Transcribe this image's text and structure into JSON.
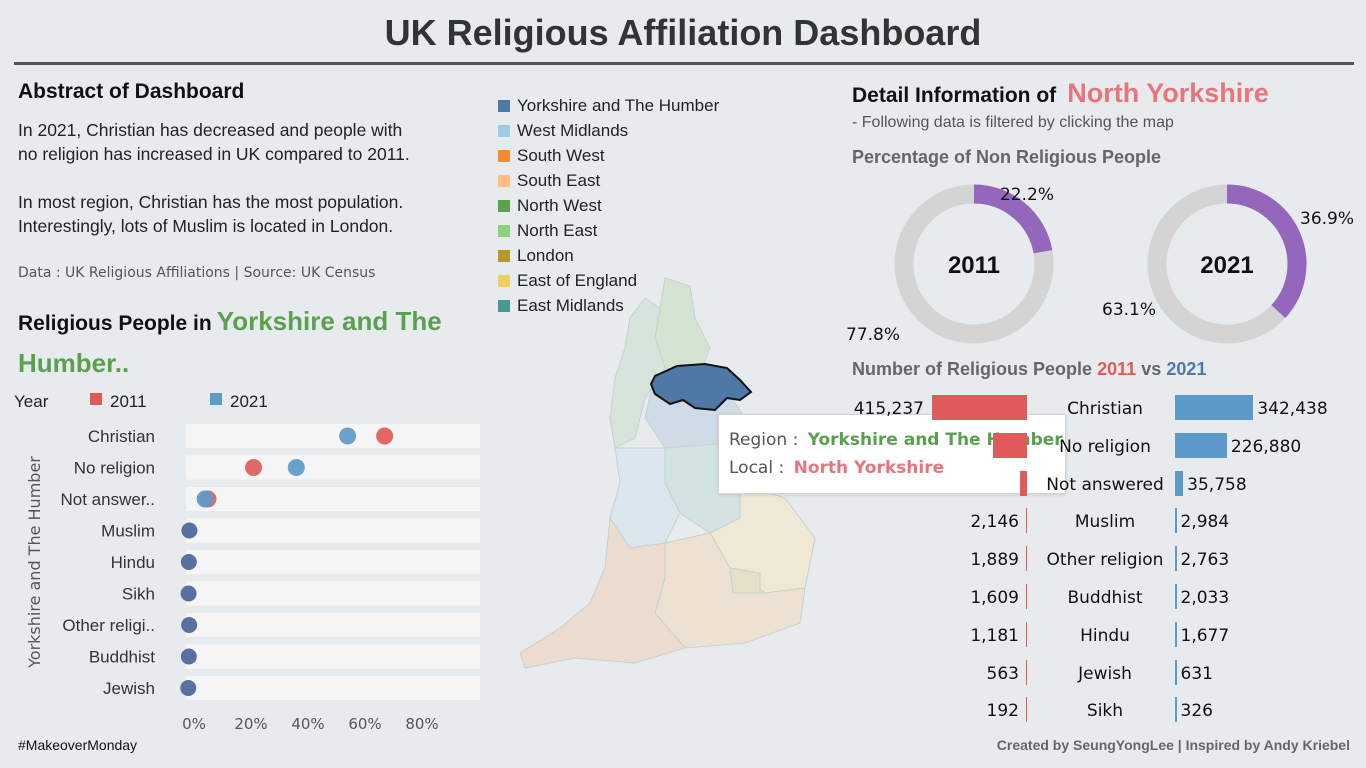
{
  "page": {
    "title": "UK Religious Affiliation Dashboard",
    "footer_left": "#MakeoverMonday",
    "footer_right": "Created by SeungYongLee | Inspired by Andy Kriebel"
  },
  "abstract": {
    "heading": "Abstract of Dashboard",
    "para1_line1": "In 2021, Christian has decreased  and people with",
    "para1_line2": "no religion has increased in UK compared to 2011.",
    "para2_line1": "In most region, Christian has the most population.",
    "para2_line2": "Interestingly, lots of Muslim is located in London.",
    "source": "Data : UK Religious Affiliations  | Source: UK Census"
  },
  "religious_people": {
    "heading_prefix": "Religious People in",
    "region_line1": "Yorkshire and The",
    "region_line2": "Humber.."
  },
  "region_legend": [
    {
      "label": "Yorkshire and The Humber",
      "color": "#4e79a7"
    },
    {
      "label": "West Midlands",
      "color": "#a0cbe8"
    },
    {
      "label": "South West",
      "color": "#f28e2b"
    },
    {
      "label": "South East",
      "color": "#ffbe7d"
    },
    {
      "label": "North West",
      "color": "#59a14f"
    },
    {
      "label": "North East",
      "color": "#8cd17d"
    },
    {
      "label": "London",
      "color": "#b6992d"
    },
    {
      "label": "East of England",
      "color": "#f1ce63"
    },
    {
      "label": "East Midlands",
      "color": "#499894"
    }
  ],
  "tooltip": {
    "region_label": "Region :",
    "region_value": "Yorkshire and The Humber",
    "local_label": "Local :",
    "local_value": "North Yorkshire"
  },
  "detail": {
    "heading_prefix": "Detail Information of",
    "local_name": "North Yorkshire",
    "subtext": "- Following data is filtered by clicking the map",
    "pct_heading": "Percentage of Non Religious People",
    "num_heading_prefix": "Number of Religious People",
    "num_heading_2011": "2011",
    "num_heading_vs": "vs",
    "num_heading_2021": "2021"
  },
  "colors": {
    "red_2011": "#e05a5a",
    "blue_2021": "#5b9ac9",
    "green_region": "#59a14f",
    "local_red": "#e8747c",
    "donut_purple": "#9467bd",
    "donut_gray": "#d4d4d4",
    "dot_dark": "#4e6a9a"
  },
  "chart_data": [
    {
      "type": "scatter",
      "title": "",
      "legend_title": "Year",
      "ylabel": "Yorkshire and The Humber",
      "xlim": [
        0,
        100
      ],
      "xticks": [
        "0%",
        "20%",
        "40%",
        "60%",
        "80%"
      ],
      "categories": [
        "Christian",
        "No religion",
        "Not answer..",
        "Muslim",
        "Hindu",
        "Sikh",
        "Other religi..",
        "Buddhist",
        "Jewish"
      ],
      "series": [
        {
          "name": "2011",
          "values": [
            69,
            23,
            7,
            0.5,
            0.3,
            0.2,
            0.4,
            0.3,
            0.1
          ]
        },
        {
          "name": "2021",
          "values": [
            56,
            38,
            6,
            0.5,
            0.3,
            0.2,
            0.4,
            0.3,
            0.1
          ]
        }
      ]
    },
    {
      "type": "pie",
      "title": "2011",
      "labels": [
        "No religion",
        "Religious"
      ],
      "values": [
        22.2,
        77.8
      ],
      "value_labels": [
        "22.2%",
        "77.8%"
      ]
    },
    {
      "type": "pie",
      "title": "2021",
      "labels": [
        "No religion",
        "Religious"
      ],
      "values": [
        36.9,
        63.1
      ],
      "value_labels": [
        "36.9%",
        "63.1%"
      ]
    },
    {
      "type": "bar",
      "title": "Number of Religious People 2011 vs 2021",
      "categories": [
        "Christian",
        "No religion",
        "Not answered",
        "Muslim",
        "Other religion",
        "Buddhist",
        "Hindu",
        "Jewish",
        "Sikh"
      ],
      "series": [
        {
          "name": "2011",
          "values": [
            415237,
            150000,
            30000,
            2146,
            1889,
            1609,
            1181,
            563,
            192
          ]
        },
        {
          "name": "2021",
          "values": [
            342438,
            226880,
            35758,
            2984,
            2763,
            2033,
            1677,
            631,
            326
          ]
        }
      ],
      "labels_2011": [
        "415,237",
        "",
        "",
        "2,146",
        "1,889",
        "1,609",
        "1,181",
        "563",
        "192"
      ],
      "labels_2021": [
        "342,438",
        "226,880",
        "35,758",
        "2,984",
        "2,763",
        "2,033",
        "1,677",
        "631",
        "326"
      ]
    }
  ]
}
